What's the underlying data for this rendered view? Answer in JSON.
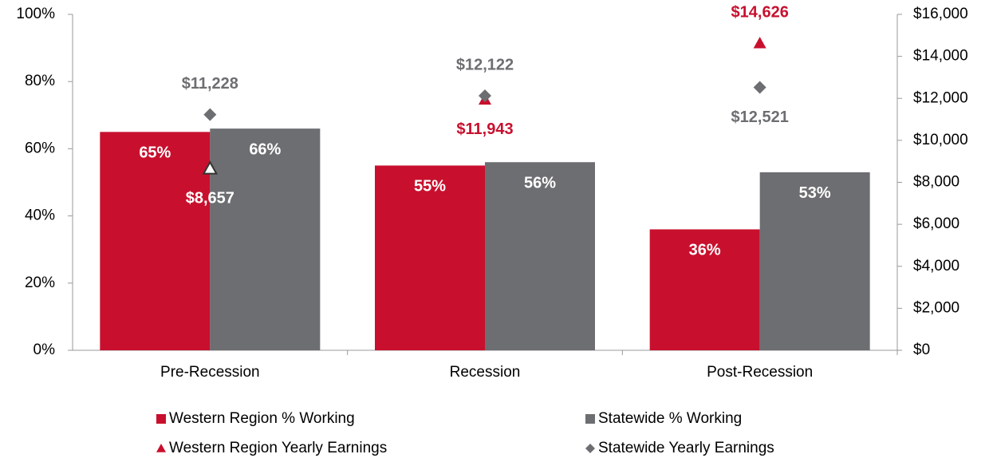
{
  "chart_data": {
    "type": "bar",
    "categories": [
      "Pre-Recession",
      "Recession",
      "Post-Recession"
    ],
    "series": [
      {
        "name": "Western Region % Working",
        "color": "#c8102e",
        "marker": "square",
        "values": [
          65,
          55,
          36
        ],
        "value_labels": [
          "65%",
          "55%",
          "36%"
        ]
      },
      {
        "name": "Statewide % Working",
        "color": "#6d6e71",
        "marker": "square",
        "values": [
          66,
          56,
          53
        ],
        "value_labels": [
          "66%",
          "56%",
          "53%"
        ]
      },
      {
        "name": "Western Region Yearly Earnings",
        "color": "#c8102e",
        "marker": "triangle",
        "axis": "y2",
        "values": [
          8657,
          11943,
          14626
        ],
        "value_labels": [
          "$8,657",
          "$11,943",
          "$14,626"
        ]
      },
      {
        "name": "Statewide Yearly Earnings",
        "color": "#6d6e71",
        "marker": "diamond",
        "axis": "y2",
        "values": [
          11228,
          12122,
          12521
        ],
        "value_labels": [
          "$11,228",
          "$12,122",
          "$12,521"
        ]
      }
    ],
    "ylim": [
      0,
      100
    ],
    "yticks": [
      {
        "value": 0,
        "label": "0%"
      },
      {
        "value": 20,
        "label": "20%"
      },
      {
        "value": 40,
        "label": "40%"
      },
      {
        "value": 60,
        "label": "60%"
      },
      {
        "value": 80,
        "label": "80%"
      },
      {
        "value": 100,
        "label": "100%"
      }
    ],
    "y2lim": [
      0,
      16000
    ],
    "y2ticks": [
      {
        "value": 0,
        "label": "$0"
      },
      {
        "value": 2000,
        "label": "$2,000"
      },
      {
        "value": 4000,
        "label": "$4,000"
      },
      {
        "value": 6000,
        "label": "$6,000"
      },
      {
        "value": 8000,
        "label": "$8,000"
      },
      {
        "value": 10000,
        "label": "$10,000"
      },
      {
        "value": 12000,
        "label": "$12,000"
      },
      {
        "value": 14000,
        "label": "$14,000"
      },
      {
        "value": 16000,
        "label": "$16,000"
      }
    ],
    "legend": "bottom"
  }
}
